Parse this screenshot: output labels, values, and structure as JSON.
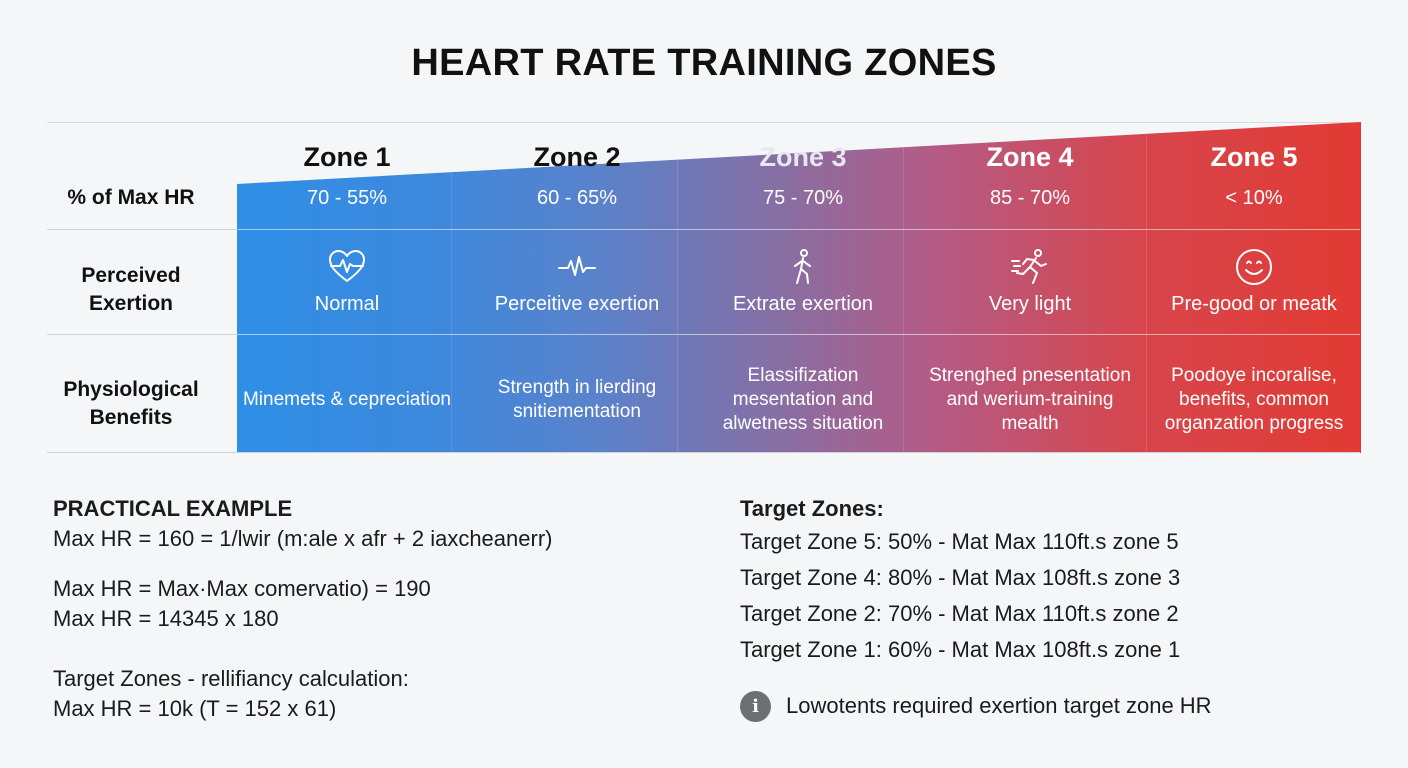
{
  "title": "HEART RATE TRAINING ZONES",
  "row_labels": {
    "max_hr": "% of Max HR",
    "exertion_line1": "Perceived",
    "exertion_line2": "Exertion",
    "benefits_line1": "Physiological",
    "benefits_line2": "Benefits"
  },
  "zones": [
    {
      "name": "Zone 1",
      "percent": "70 - 55%",
      "icon": "heart-pulse-icon",
      "exertion": "Normal",
      "benefits": "Minemets & cepreciation",
      "header_color": "#111111"
    },
    {
      "name": "Zone 2",
      "percent": "60 - 65%",
      "icon": "pulse-line-icon",
      "exertion": "Perceitive exertion",
      "benefits": "Strength in lierding snitiementation",
      "header_color": "#111111"
    },
    {
      "name": "Zone 3",
      "percent": "75 - 70%",
      "icon": "walking-person-icon",
      "exertion": "Extrate exertion",
      "benefits": "Elassifization mesentation and alwetness situation",
      "header_color": "#e6e8f0"
    },
    {
      "name": "Zone 4",
      "percent": "85 - 70%",
      "icon": "running-person-icon",
      "exertion": "Very light",
      "benefits": "Strenghed pnesentation and werium-training mealth",
      "header_color": "#ffffff"
    },
    {
      "name": "Zone 5",
      "percent": "< 10%",
      "icon": "smiley-face-icon",
      "exertion": "Pre-good or meatk",
      "benefits": "Poodoye incoralise, benefits, common organzation progress",
      "header_color": "#ffffff"
    }
  ],
  "practical": {
    "heading": "PRACTICAL EXAMPLE",
    "line1": "Max HR = 160 = 1/lwir (m:ale x afr + 2 iaxcheanerr)",
    "line2": "Max HR = Max·Max comervatio) = 190",
    "line3": "Max HR = 14345 x 180",
    "line4": "Target Zones - rellifiancy calculation:",
    "line5": "Max HR = 10k (T = 152 x 61)"
  },
  "target_zones": {
    "heading": "Target Zones:",
    "items": [
      "Target Zone 5: 50% - Mat Max 110ft.s zone 5",
      "Target Zone 4: 80% - Mat Max 108ft.s zone 3",
      "Target Zone 2: 70% - Mat Max 110ft.s zone 2",
      "Target Zone 1: 60% - Mat Max 108ft.s zone 1"
    ],
    "info_note": "Lowotents required exertion target zone HR",
    "info_icon": "info-icon"
  }
}
